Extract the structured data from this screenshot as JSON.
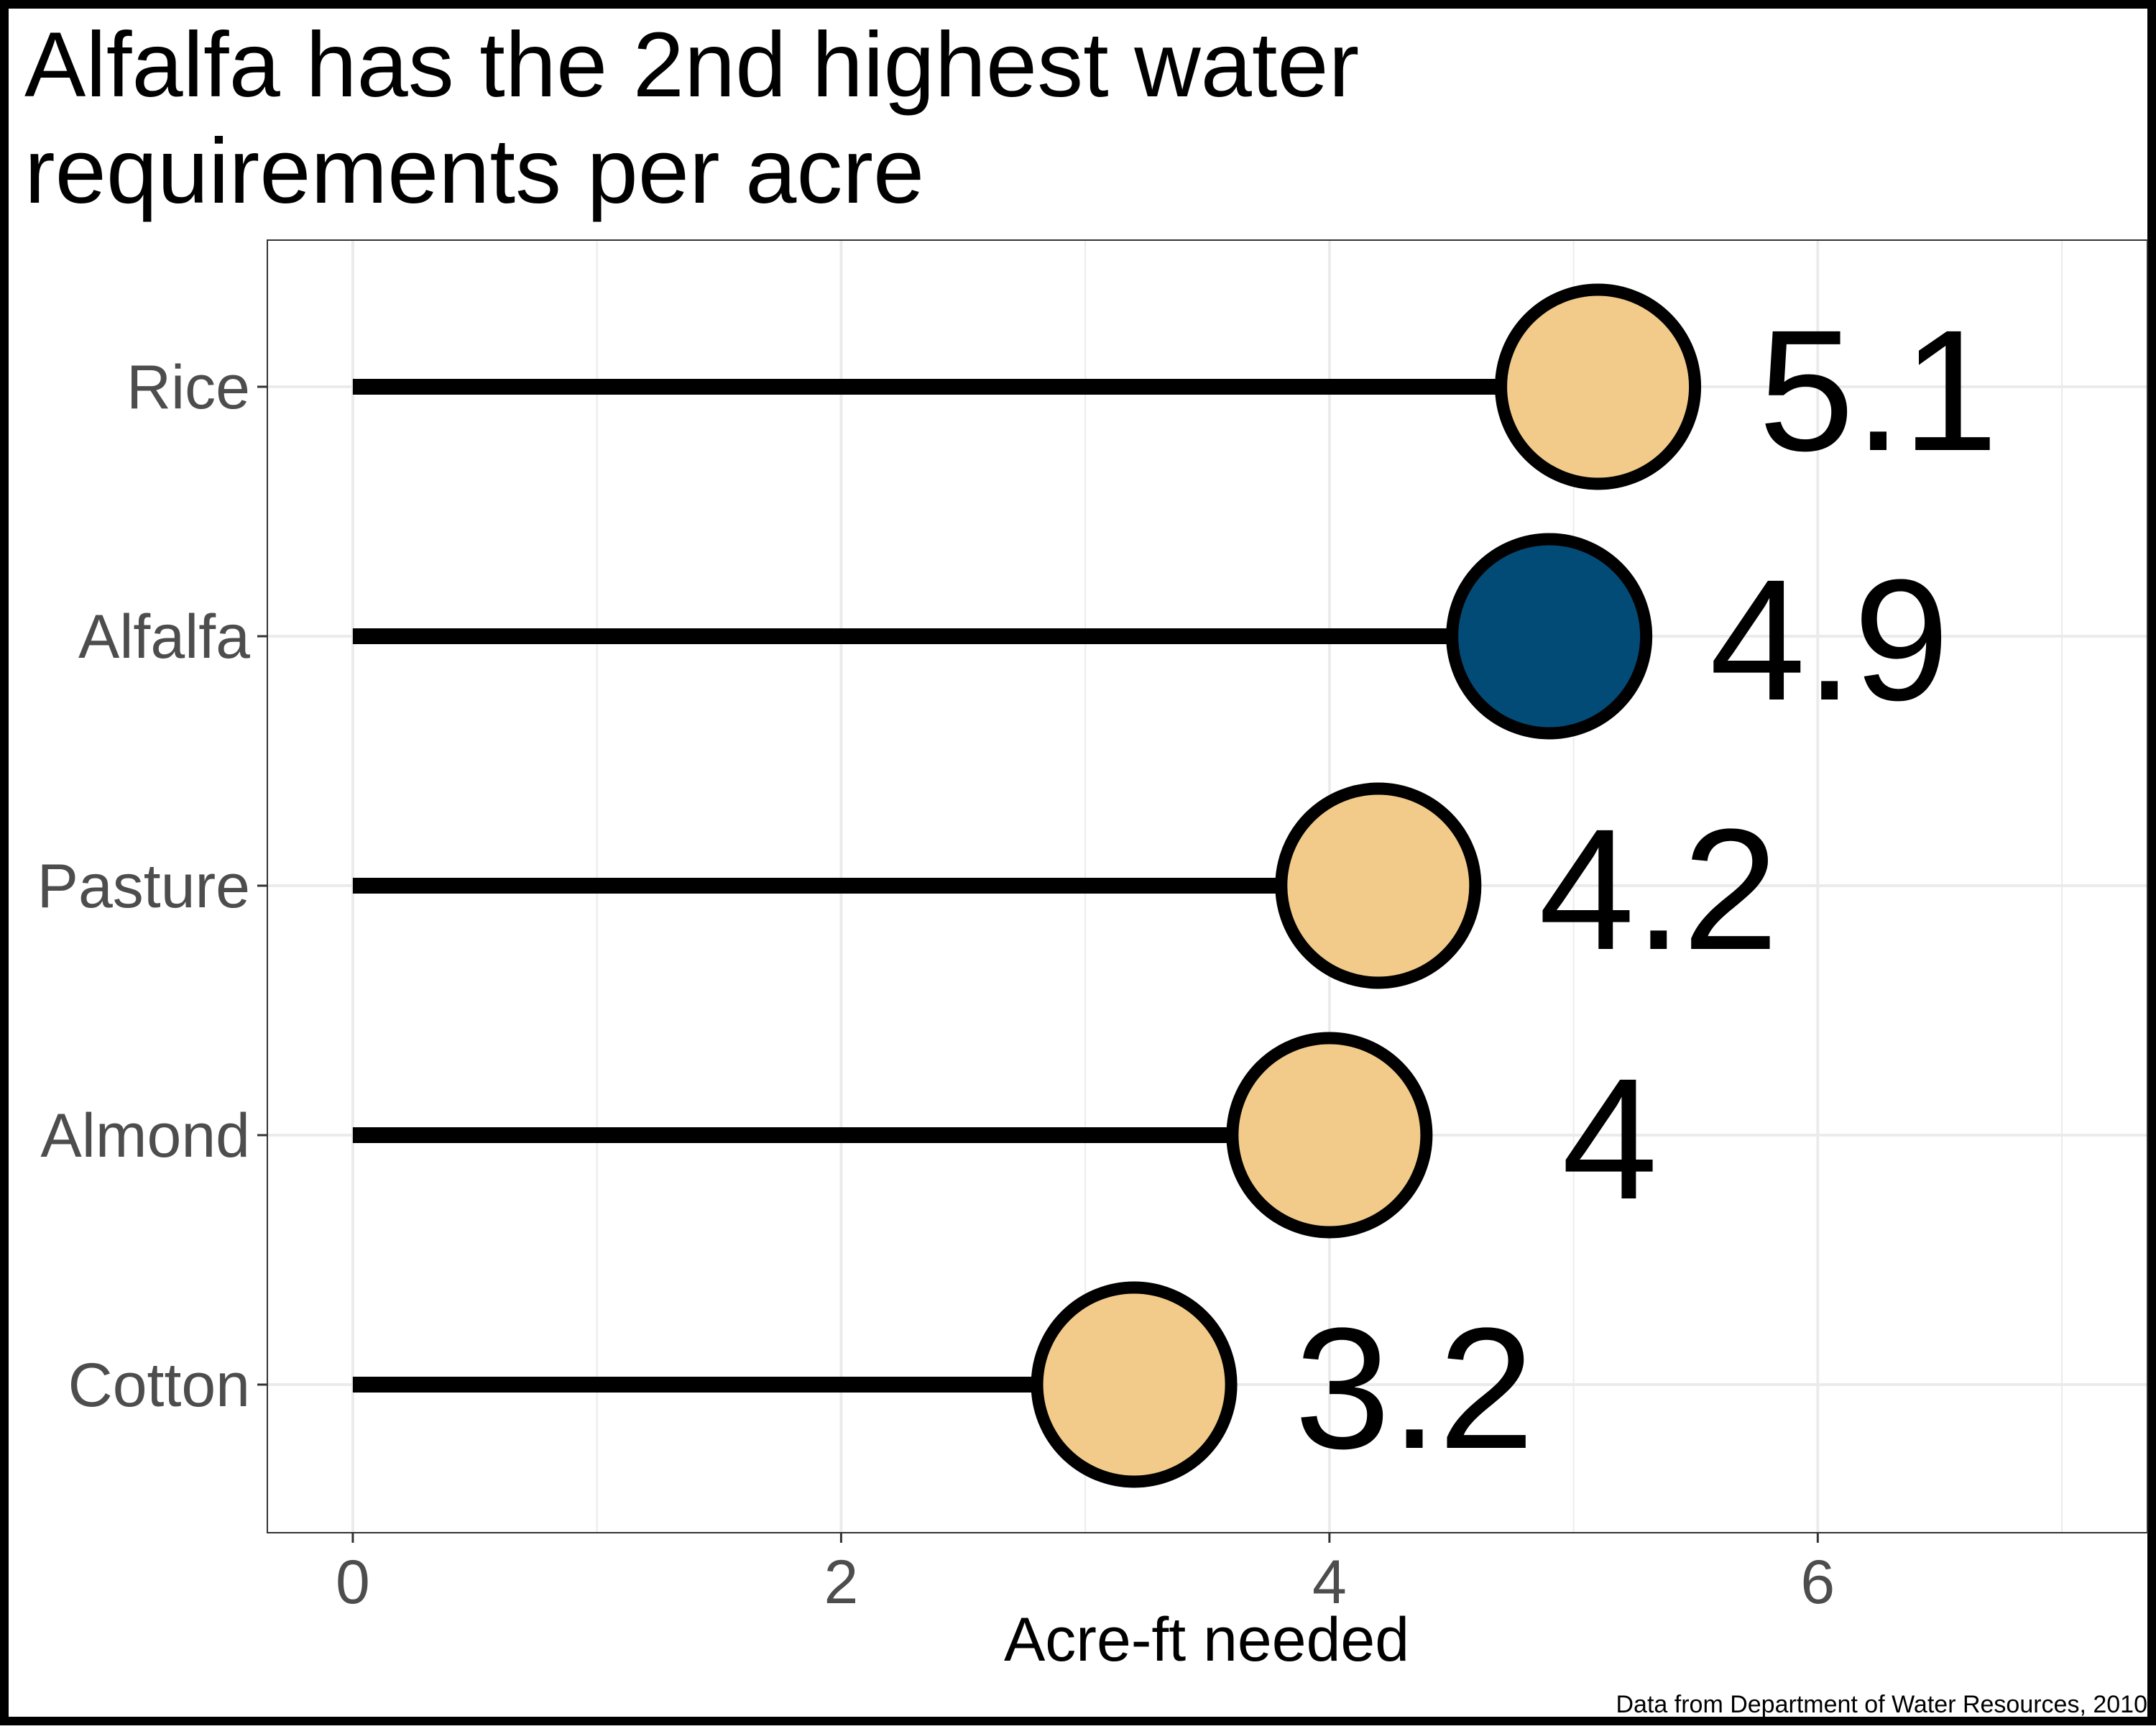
{
  "chart_data": {
    "type": "lollipop",
    "title_lines": [
      "Alfalfa has the 2nd highest water",
      "requirements per acre"
    ],
    "xlabel": "Acre-ft needed",
    "ylabel": "",
    "caption": "Data from Department of Water Resources, 2010",
    "categories": [
      "Rice",
      "Alfalfa",
      "Pasture",
      "Almond",
      "Cotton"
    ],
    "values": [
      5.1,
      4.9,
      4.2,
      4,
      3.2
    ],
    "value_labels": [
      "5.1",
      "4.9",
      "4.2",
      "4",
      "3.2"
    ],
    "highlight": "Alfalfa",
    "xlim": [
      -0.35,
      7.35
    ],
    "x_ticks": [
      0,
      2,
      4,
      6
    ],
    "x_tick_labels": [
      "0",
      "2",
      "4",
      "6"
    ],
    "x_minor_ticks": [
      1,
      3,
      5,
      7
    ],
    "grid": true,
    "legend": "none",
    "colors": {
      "highlight_fill": "#034B77",
      "default_fill": "#F2CB8A",
      "stem": "#000000",
      "outline": "#000000",
      "grid": "#ebebeb",
      "tick_text": "#4d4d4d"
    }
  }
}
